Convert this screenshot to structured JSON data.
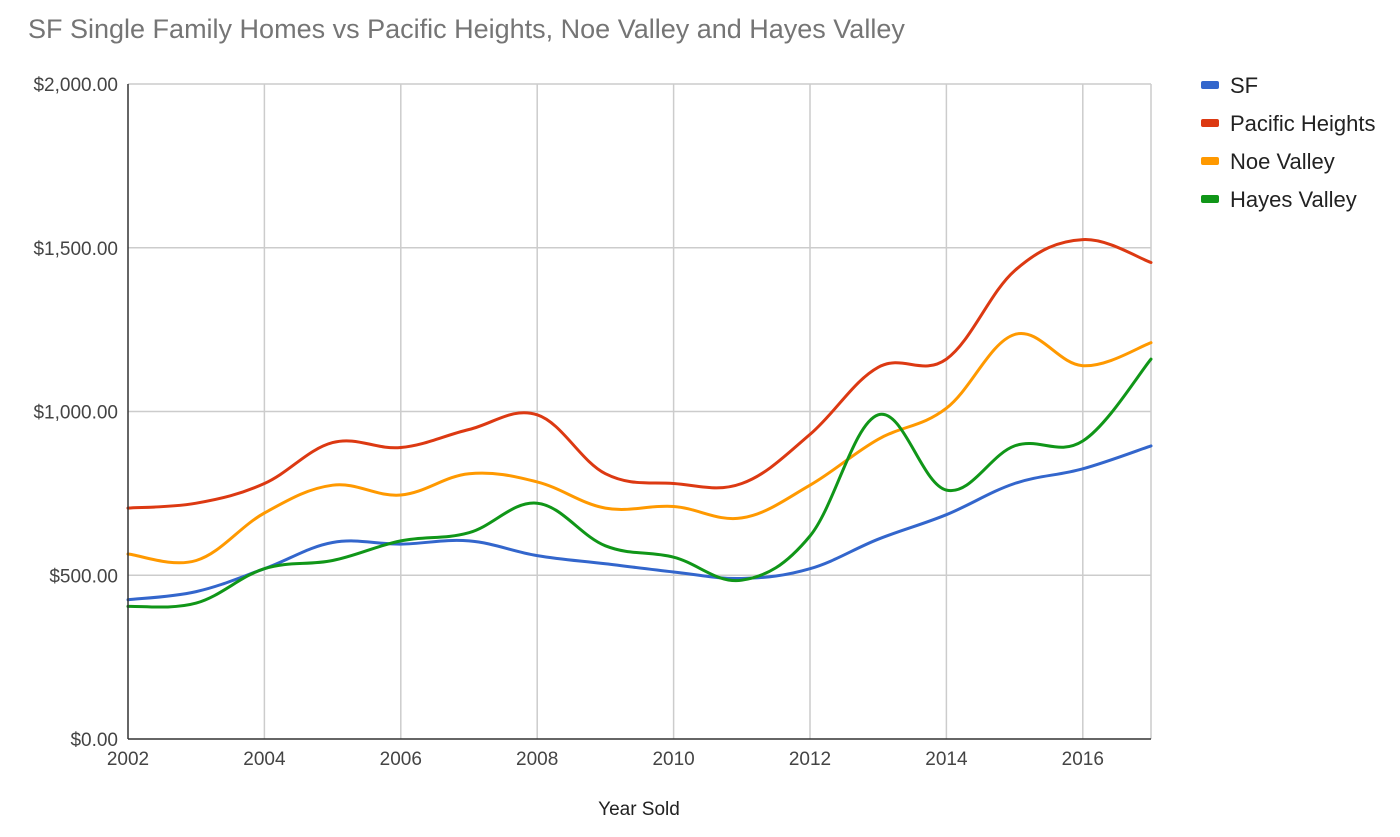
{
  "chart_data": {
    "type": "line",
    "title": "SF Single Family Homes vs Pacific Heights, Noe Valley and Hayes Valley",
    "xlabel": "Year Sold",
    "ylabel": "",
    "xlim": [
      2002,
      2017
    ],
    "ylim": [
      0,
      2000
    ],
    "x_ticks": [
      "2002",
      "2004",
      "2006",
      "2008",
      "2010",
      "2012",
      "2014",
      "2016"
    ],
    "y_ticks": [
      "$0.00",
      "$500.00",
      "$1,000.00",
      "$1,500.00",
      "$2,000.00"
    ],
    "grid": true,
    "legend_position": "right",
    "x": [
      2002,
      2003,
      2004,
      2005,
      2006,
      2007,
      2008,
      2009,
      2010,
      2011,
      2012,
      2013,
      2014,
      2015,
      2016,
      2017
    ],
    "series": [
      {
        "name": "SF",
        "color": "#3366cc",
        "values": [
          425,
          450,
          520,
          600,
          595,
          605,
          560,
          535,
          510,
          490,
          520,
          610,
          685,
          780,
          825,
          895
        ]
      },
      {
        "name": "Pacific Heights",
        "color": "#dc3912",
        "values": [
          705,
          720,
          780,
          905,
          890,
          945,
          990,
          810,
          780,
          780,
          930,
          1135,
          1160,
          1430,
          1525,
          1455
        ]
      },
      {
        "name": "Noe Valley",
        "color": "#ff9900",
        "values": [
          565,
          545,
          690,
          775,
          745,
          810,
          785,
          705,
          710,
          675,
          775,
          915,
          1010,
          1235,
          1140,
          1210
        ]
      },
      {
        "name": "Hayes Valley",
        "color": "#109618",
        "values": [
          405,
          415,
          520,
          545,
          605,
          630,
          720,
          590,
          555,
          485,
          620,
          990,
          760,
          895,
          910,
          1160
        ]
      }
    ]
  }
}
